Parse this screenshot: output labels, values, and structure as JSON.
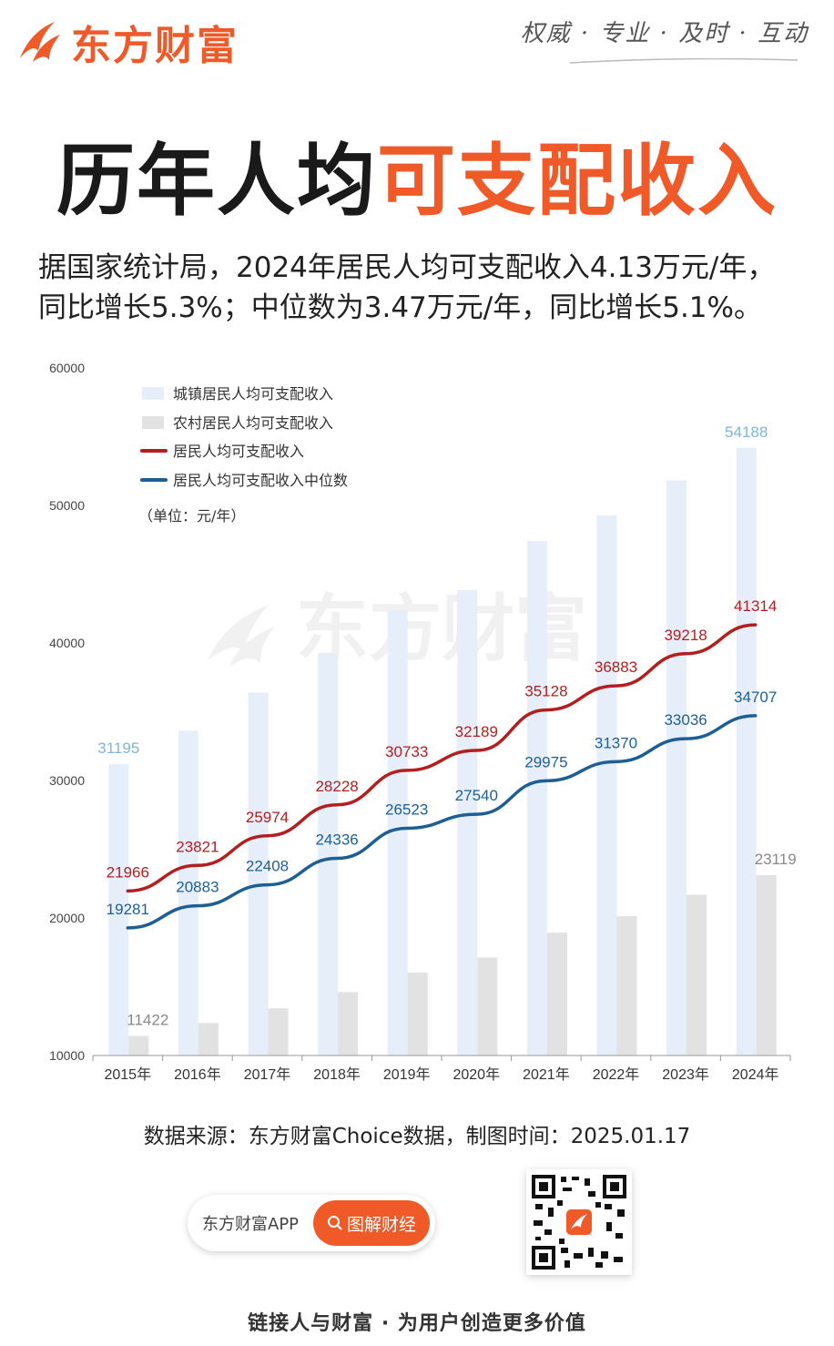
{
  "header": {
    "brand": "东方财富",
    "slogan": "权威 · 专业 · 及时 · 互动",
    "brand_color": "#ef5a28"
  },
  "title": {
    "part1": "历年人均",
    "part2": "可支配收入"
  },
  "intro": {
    "line1": "据国家统计局，2024年居民人均可支配收入4.13万元/年，",
    "line2": "同比增长5.3%；中位数为3.47万元/年，同比增长5.1%。"
  },
  "watermark": "东方财富",
  "chart_data": {
    "type": "bar",
    "title": "历年人均可支配收入",
    "unit_note": "（单位：元/年）",
    "categories": [
      "2015年",
      "2016年",
      "2017年",
      "2018年",
      "2019年",
      "2020年",
      "2021年",
      "2022年",
      "2023年",
      "2024年"
    ],
    "y_ticks": [
      "10000",
      "20000",
      "30000",
      "40000",
      "50000",
      "60000"
    ],
    "ylim": [
      10000,
      60000
    ],
    "series": [
      {
        "name": "城镇居民人均可支配收入",
        "kind": "bar",
        "color": "#e6eef9",
        "values": [
          31195,
          33616,
          36396,
          39251,
          42359,
          43834,
          47412,
          49283,
          51821,
          54188
        ],
        "labels": [
          "31195",
          "",
          "",
          "",
          "",
          "",
          "",
          "",
          "",
          "54188"
        ],
        "label_color": "#7eb6dc"
      },
      {
        "name": "农村居民人均可支配收入",
        "kind": "bar",
        "color": "#e2e2e2",
        "values": [
          11422,
          12363,
          13432,
          14617,
          16021,
          17131,
          18931,
          20133,
          21691,
          23119
        ],
        "labels": [
          "11422",
          "",
          "",
          "",
          "",
          "",
          "",
          "",
          "",
          "23119"
        ],
        "label_color": "#888888"
      },
      {
        "name": "居民人均可支配收入",
        "kind": "line",
        "color": "#b41e1e",
        "values": [
          21966,
          23821,
          25974,
          28228,
          30733,
          32189,
          35128,
          36883,
          39218,
          41314
        ],
        "labels": [
          "21966",
          "23821",
          "25974",
          "28228",
          "30733",
          "32189",
          "35128",
          "36883",
          "39218",
          "41314"
        ]
      },
      {
        "name": "居民人均可支配收入中位数",
        "kind": "line",
        "color": "#1d5f95",
        "values": [
          19281,
          20883,
          22408,
          24336,
          26523,
          27540,
          29975,
          31370,
          33036,
          34707
        ],
        "labels": [
          "19281",
          "20883",
          "22408",
          "24336",
          "26523",
          "27540",
          "29975",
          "31370",
          "33036",
          "34707"
        ]
      }
    ]
  },
  "source": "数据来源：东方财富Choice数据，制图时间：2025.01.17",
  "app": {
    "label": "东方财富APP",
    "button": "图解财经"
  },
  "footer": "链接人与财富 · 为用户创造更多价值"
}
